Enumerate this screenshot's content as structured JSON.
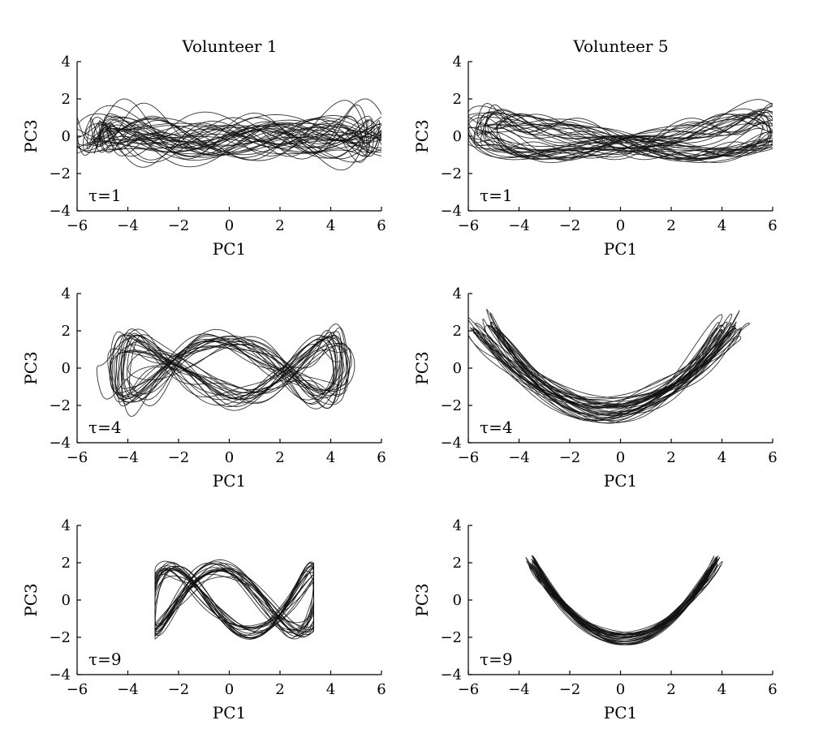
{
  "figure": {
    "column_titles": [
      "Volunteer 1",
      "Volunteer 5"
    ]
  },
  "chart_data": [
    {
      "type": "line",
      "panel": "Volunteer 1, tau=1",
      "title": "Volunteer 1",
      "xlabel": "PC1",
      "ylabel": "PC3",
      "xlim": [
        -6,
        6
      ],
      "ylim": [
        -4,
        4
      ],
      "xticks": [
        -6,
        -4,
        -2,
        0,
        2,
        4,
        6
      ],
      "yticks": [
        -4,
        -2,
        0,
        2,
        4
      ],
      "annotation": "τ=1",
      "trajectory": {
        "cx": 0.3,
        "cy": 0.0,
        "ax": 6.0,
        "ay": 0.45,
        "fx": 1,
        "fy": 2,
        "phase": 0.3,
        "loops": 22,
        "spread": 0.55,
        "seed": 11,
        "chaos": 1.8
      },
      "grid": false
    },
    {
      "type": "line",
      "panel": "Volunteer 5, tau=1",
      "title": "Volunteer 5",
      "xlabel": "PC1",
      "ylabel": "PC3",
      "xlim": [
        -6,
        6
      ],
      "ylim": [
        -4,
        4
      ],
      "xticks": [
        -6,
        -4,
        -2,
        0,
        2,
        4,
        6
      ],
      "yticks": [
        -4,
        -2,
        0,
        2,
        4
      ],
      "annotation": "τ=1",
      "trajectory": {
        "cx": 0.3,
        "cy": 0.0,
        "ax": 6.0,
        "ay": 0.9,
        "fx": 1,
        "fy": 2,
        "phase": 0.5,
        "loops": 22,
        "spread": 0.45,
        "seed": 23,
        "chaos": 0.9
      },
      "grid": false
    },
    {
      "type": "line",
      "panel": "Volunteer 1, tau=4",
      "xlabel": "PC1",
      "ylabel": "PC3",
      "xlim": [
        -6,
        6
      ],
      "ylim": [
        -4,
        4
      ],
      "xticks": [
        -6,
        -4,
        -2,
        0,
        2,
        4,
        6
      ],
      "yticks": [
        -4,
        -2,
        0,
        2,
        4
      ],
      "annotation": "τ=4",
      "trajectory": {
        "cx": 0.0,
        "cy": 0.0,
        "ax": 4.6,
        "ay": 1.5,
        "fx": 1,
        "fy": 3,
        "phase": 0.2,
        "loops": 20,
        "spread": 0.4,
        "seed": 37,
        "chaos": 0.9
      },
      "grid": false
    },
    {
      "type": "line",
      "panel": "Volunteer 5, tau=4",
      "xlabel": "PC1",
      "ylabel": "PC3",
      "xlim": [
        -6,
        6
      ],
      "ylim": [
        -4,
        4
      ],
      "xticks": [
        -6,
        -4,
        -2,
        0,
        2,
        4,
        6
      ],
      "yticks": [
        -4,
        -2,
        0,
        2,
        4
      ],
      "annotation": "τ=4",
      "trajectory": {
        "cx": -0.5,
        "cy": 0.0,
        "ax": 4.9,
        "ay": 2.3,
        "fx": 1,
        "fy": 2,
        "phase": 1.5708,
        "loops": 20,
        "spread": 0.35,
        "seed": 41,
        "chaos": 0.35
      },
      "grid": false
    },
    {
      "type": "line",
      "panel": "Volunteer 1, tau=9",
      "xlabel": "PC1",
      "ylabel": "PC3",
      "xlim": [
        -6,
        6
      ],
      "ylim": [
        -4,
        4
      ],
      "xticks": [
        -6,
        -4,
        -2,
        0,
        2,
        4,
        6
      ],
      "yticks": [
        -4,
        -2,
        0,
        2,
        4
      ],
      "annotation": "τ=9",
      "trajectory": {
        "cx": 0.2,
        "cy": 0.0,
        "ax": 3.4,
        "ay": 1.8,
        "fx": 1,
        "fy": 3,
        "phase": 0.6,
        "loops": 18,
        "spread": 0.25,
        "seed": 53,
        "chaos": 0.5,
        "box": true
      },
      "grid": false
    },
    {
      "type": "line",
      "panel": "Volunteer 5, tau=9",
      "xlabel": "PC1",
      "ylabel": "PC3",
      "xlim": [
        -6,
        6
      ],
      "ylim": [
        -4,
        4
      ],
      "xticks": [
        -6,
        -4,
        -2,
        0,
        2,
        4,
        6
      ],
      "yticks": [
        -4,
        -2,
        0,
        2,
        4
      ],
      "annotation": "τ=9",
      "trajectory": {
        "cx": 0.1,
        "cy": 0.0,
        "ax": 3.7,
        "ay": 2.1,
        "fx": 1,
        "fy": 2,
        "phase": 1.5708,
        "loops": 16,
        "spread": 0.18,
        "seed": 61,
        "chaos": 0.15
      },
      "grid": false
    }
  ]
}
